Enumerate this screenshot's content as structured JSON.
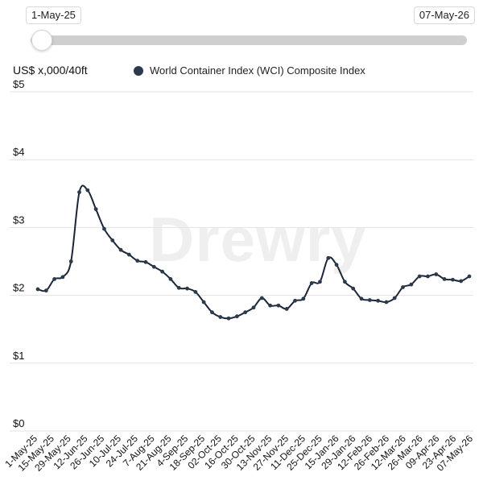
{
  "range": {
    "start": "1-May-25",
    "end": "07-May-26",
    "position": 0
  },
  "watermark": "Drewry",
  "chart_data": {
    "type": "line",
    "ylabel": "US$ x,000/40ft",
    "ylim": [
      0,
      5
    ],
    "yticks": [
      "$0",
      "$1",
      "$2",
      "$3",
      "$4",
      "$5"
    ],
    "grid": "horizontal",
    "legend_position": "top",
    "series_color": "#1c2536",
    "marker_color": "#2b3a4d",
    "tick_labels": [
      "1-May-25",
      "15-May-25",
      "29-May-25",
      "12-Jun-25",
      "26-Jun-25",
      "10-Jul-25",
      "24-Jul-25",
      "7-Aug-25",
      "21-Aug-25",
      "4-Sep-25",
      "18-Sep-25",
      "02-Oct-25",
      "16-Oct-25",
      "30-Oct-25",
      "13-Nov-25",
      "27-Nov-25",
      "11-Dec-25",
      "25-Dec-25",
      "15-Jan-26",
      "29-Jan-26",
      "12-Feb-26",
      "26-Feb-26",
      "12-Mar-26",
      "26-Mar-26",
      "09-Apr-26",
      "23-Apr-26",
      "07-May-26"
    ],
    "series": [
      {
        "name": "World Container Index (WCI) Composite Index",
        "x": [
          "1-May-25",
          "8-May-25",
          "15-May-25",
          "22-May-25",
          "29-May-25",
          "5-Jun-25",
          "12-Jun-25",
          "19-Jun-25",
          "26-Jun-25",
          "3-Jul-25",
          "10-Jul-25",
          "17-Jul-25",
          "24-Jul-25",
          "31-Jul-25",
          "7-Aug-25",
          "14-Aug-25",
          "21-Aug-25",
          "28-Aug-25",
          "4-Sep-25",
          "11-Sep-25",
          "18-Sep-25",
          "25-Sep-25",
          "02-Oct-25",
          "9-Oct-25",
          "16-Oct-25",
          "23-Oct-25",
          "30-Oct-25",
          "6-Nov-25",
          "13-Nov-25",
          "20-Nov-25",
          "27-Nov-25",
          "4-Dec-25",
          "11-Dec-25",
          "18-Dec-25",
          "25-Dec-25",
          "8-Jan-26",
          "15-Jan-26",
          "22-Jan-26",
          "29-Jan-26",
          "5-Feb-26",
          "12-Feb-26",
          "19-Feb-26",
          "26-Feb-26",
          "5-Mar-26",
          "12-Mar-26",
          "19-Mar-26",
          "26-Mar-26",
          "2-Apr-26",
          "09-Apr-26",
          "16-Apr-26",
          "23-Apr-26",
          "30-Apr-26",
          "07-May-26"
        ],
        "values": [
          2.09,
          2.07,
          2.24,
          2.27,
          2.5,
          3.52,
          3.55,
          3.27,
          2.98,
          2.81,
          2.67,
          2.6,
          2.51,
          2.49,
          2.42,
          2.35,
          2.24,
          2.11,
          2.1,
          2.05,
          1.9,
          1.75,
          1.68,
          1.66,
          1.69,
          1.75,
          1.82,
          1.96,
          1.85,
          1.85,
          1.8,
          1.92,
          1.95,
          2.18,
          2.2,
          2.55,
          2.45,
          2.2,
          2.1,
          1.95,
          1.93,
          1.92,
          1.9,
          1.96,
          2.12,
          2.16,
          2.28,
          2.28,
          2.31,
          2.24,
          2.23,
          2.21,
          2.28
        ]
      }
    ]
  }
}
